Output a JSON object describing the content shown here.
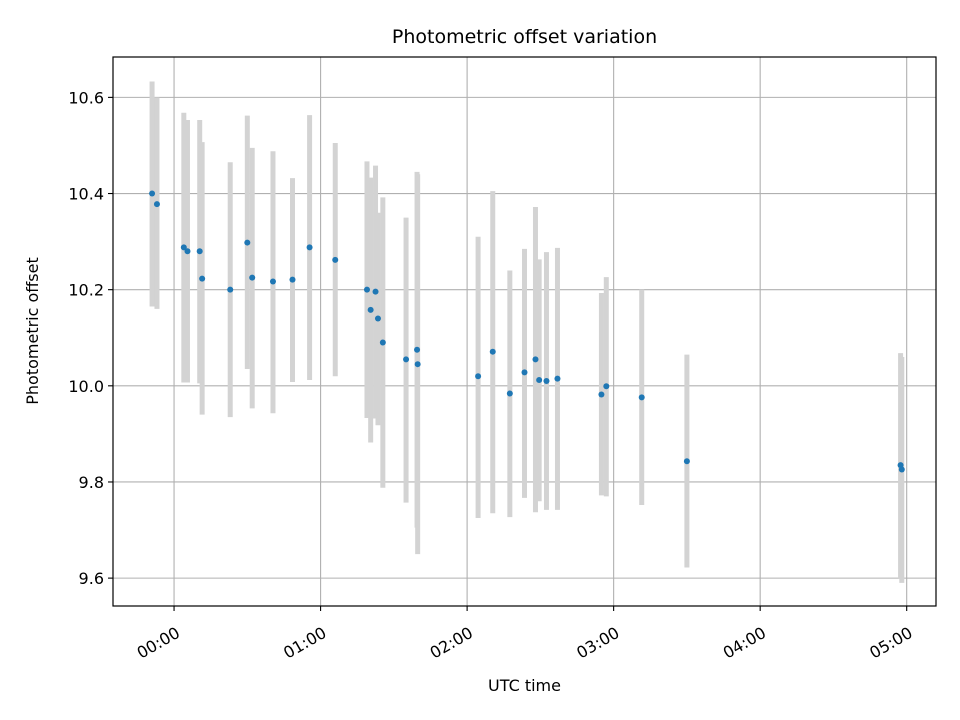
{
  "chart_data": {
    "type": "scatter",
    "title": "Photometric offset variation",
    "xlabel": "UTC time",
    "ylabel": "Photometric offset",
    "xlim": [
      "2022-01-01T23:35:00",
      "2022-01-02T05:12:00"
    ],
    "ylim": [
      9.542,
      10.684
    ],
    "grid": true,
    "x_ticks": [
      {
        "t": "2022-01-02T00:00:00",
        "label": "00:00"
      },
      {
        "t": "2022-01-02T01:00:00",
        "label": "01:00"
      },
      {
        "t": "2022-01-02T02:00:00",
        "label": "02:00"
      },
      {
        "t": "2022-01-02T03:00:00",
        "label": "03:00"
      },
      {
        "t": "2022-01-02T04:00:00",
        "label": "04:00"
      },
      {
        "t": "2022-01-02T05:00:00",
        "label": "05:00"
      }
    ],
    "y_ticks": [
      {
        "v": 9.6,
        "label": "9.6"
      },
      {
        "v": 9.8,
        "label": "9.8"
      },
      {
        "v": 10.0,
        "label": "10.0"
      },
      {
        "v": 10.2,
        "label": "10.2"
      },
      {
        "v": 10.4,
        "label": "10.4"
      },
      {
        "v": 10.6,
        "label": "10.6"
      }
    ],
    "colors": {
      "points": "#1f77b4",
      "error_bars": "#d3d3d3",
      "grid": "#b0b0b0"
    },
    "points": [
      {
        "x": "2022-01-01T23:51:00",
        "y": 10.4,
        "low": 10.165,
        "high": 10.633
      },
      {
        "x": "2022-01-01T23:53:00",
        "y": 10.378,
        "low": 10.16,
        "high": 10.6
      },
      {
        "x": "2022-01-02T00:04:00",
        "y": 10.288,
        "low": 10.007,
        "high": 10.568
      },
      {
        "x": "2022-01-02T00:05:30",
        "y": 10.28,
        "low": 10.007,
        "high": 10.553
      },
      {
        "x": "2022-01-02T00:10:30",
        "y": 10.28,
        "low": 10.005,
        "high": 10.553
      },
      {
        "x": "2022-01-02T00:11:30",
        "y": 10.223,
        "low": 9.94,
        "high": 10.507
      },
      {
        "x": "2022-01-02T00:23:00",
        "y": 10.2,
        "low": 9.935,
        "high": 10.465
      },
      {
        "x": "2022-01-02T00:30:00",
        "y": 10.298,
        "low": 10.035,
        "high": 10.562
      },
      {
        "x": "2022-01-02T00:32:00",
        "y": 10.225,
        "low": 9.953,
        "high": 10.495
      },
      {
        "x": "2022-01-02T00:40:30",
        "y": 10.217,
        "low": 9.943,
        "high": 10.488
      },
      {
        "x": "2022-01-02T00:48:30",
        "y": 10.221,
        "low": 10.008,
        "high": 10.432
      },
      {
        "x": "2022-01-02T00:55:30",
        "y": 10.288,
        "low": 10.012,
        "high": 10.563
      },
      {
        "x": "2022-01-02T01:06:00",
        "y": 10.262,
        "low": 10.02,
        "high": 10.505
      },
      {
        "x": "2022-01-02T01:19:00",
        "y": 10.2,
        "low": 9.933,
        "high": 10.467
      },
      {
        "x": "2022-01-02T01:20:30",
        "y": 10.158,
        "low": 9.882,
        "high": 10.433
      },
      {
        "x": "2022-01-02T01:22:30",
        "y": 10.196,
        "low": 9.932,
        "high": 10.458
      },
      {
        "x": "2022-01-02T01:23:30",
        "y": 10.14,
        "low": 9.918,
        "high": 10.36
      },
      {
        "x": "2022-01-02T01:25:30",
        "y": 10.09,
        "low": 9.788,
        "high": 10.392
      },
      {
        "x": "2022-01-02T01:35:00",
        "y": 10.055,
        "low": 9.757,
        "high": 10.35
      },
      {
        "x": "2022-01-02T01:39:30",
        "y": 10.075,
        "low": 9.705,
        "high": 10.445
      },
      {
        "x": "2022-01-02T01:39:45",
        "y": 10.045,
        "low": 9.65,
        "high": 10.44
      },
      {
        "x": "2022-01-02T02:04:30",
        "y": 10.02,
        "low": 9.725,
        "high": 10.31
      },
      {
        "x": "2022-01-02T02:10:30",
        "y": 10.071,
        "low": 9.735,
        "high": 10.405
      },
      {
        "x": "2022-01-02T02:17:30",
        "y": 9.984,
        "low": 9.727,
        "high": 10.24
      },
      {
        "x": "2022-01-02T02:23:30",
        "y": 10.028,
        "low": 9.767,
        "high": 10.285
      },
      {
        "x": "2022-01-02T02:28:00",
        "y": 10.055,
        "low": 9.737,
        "high": 10.372
      },
      {
        "x": "2022-01-02T02:29:30",
        "y": 10.012,
        "low": 9.76,
        "high": 10.263
      },
      {
        "x": "2022-01-02T02:32:30",
        "y": 10.01,
        "low": 9.742,
        "high": 10.278
      },
      {
        "x": "2022-01-02T02:37:00",
        "y": 10.015,
        "low": 9.742,
        "high": 10.287
      },
      {
        "x": "2022-01-02T02:55:00",
        "y": 9.982,
        "low": 9.772,
        "high": 10.193
      },
      {
        "x": "2022-01-02T02:57:00",
        "y": 9.999,
        "low": 9.77,
        "high": 10.226
      },
      {
        "x": "2022-01-02T03:11:30",
        "y": 9.976,
        "low": 9.752,
        "high": 10.2
      },
      {
        "x": "2022-01-02T03:30:00",
        "y": 9.843,
        "low": 9.622,
        "high": 10.065
      },
      {
        "x": "2022-01-02T04:57:30",
        "y": 9.835,
        "low": 9.6,
        "high": 10.068
      },
      {
        "x": "2022-01-02T04:58:00",
        "y": 9.826,
        "low": 9.59,
        "high": 10.06
      }
    ]
  }
}
